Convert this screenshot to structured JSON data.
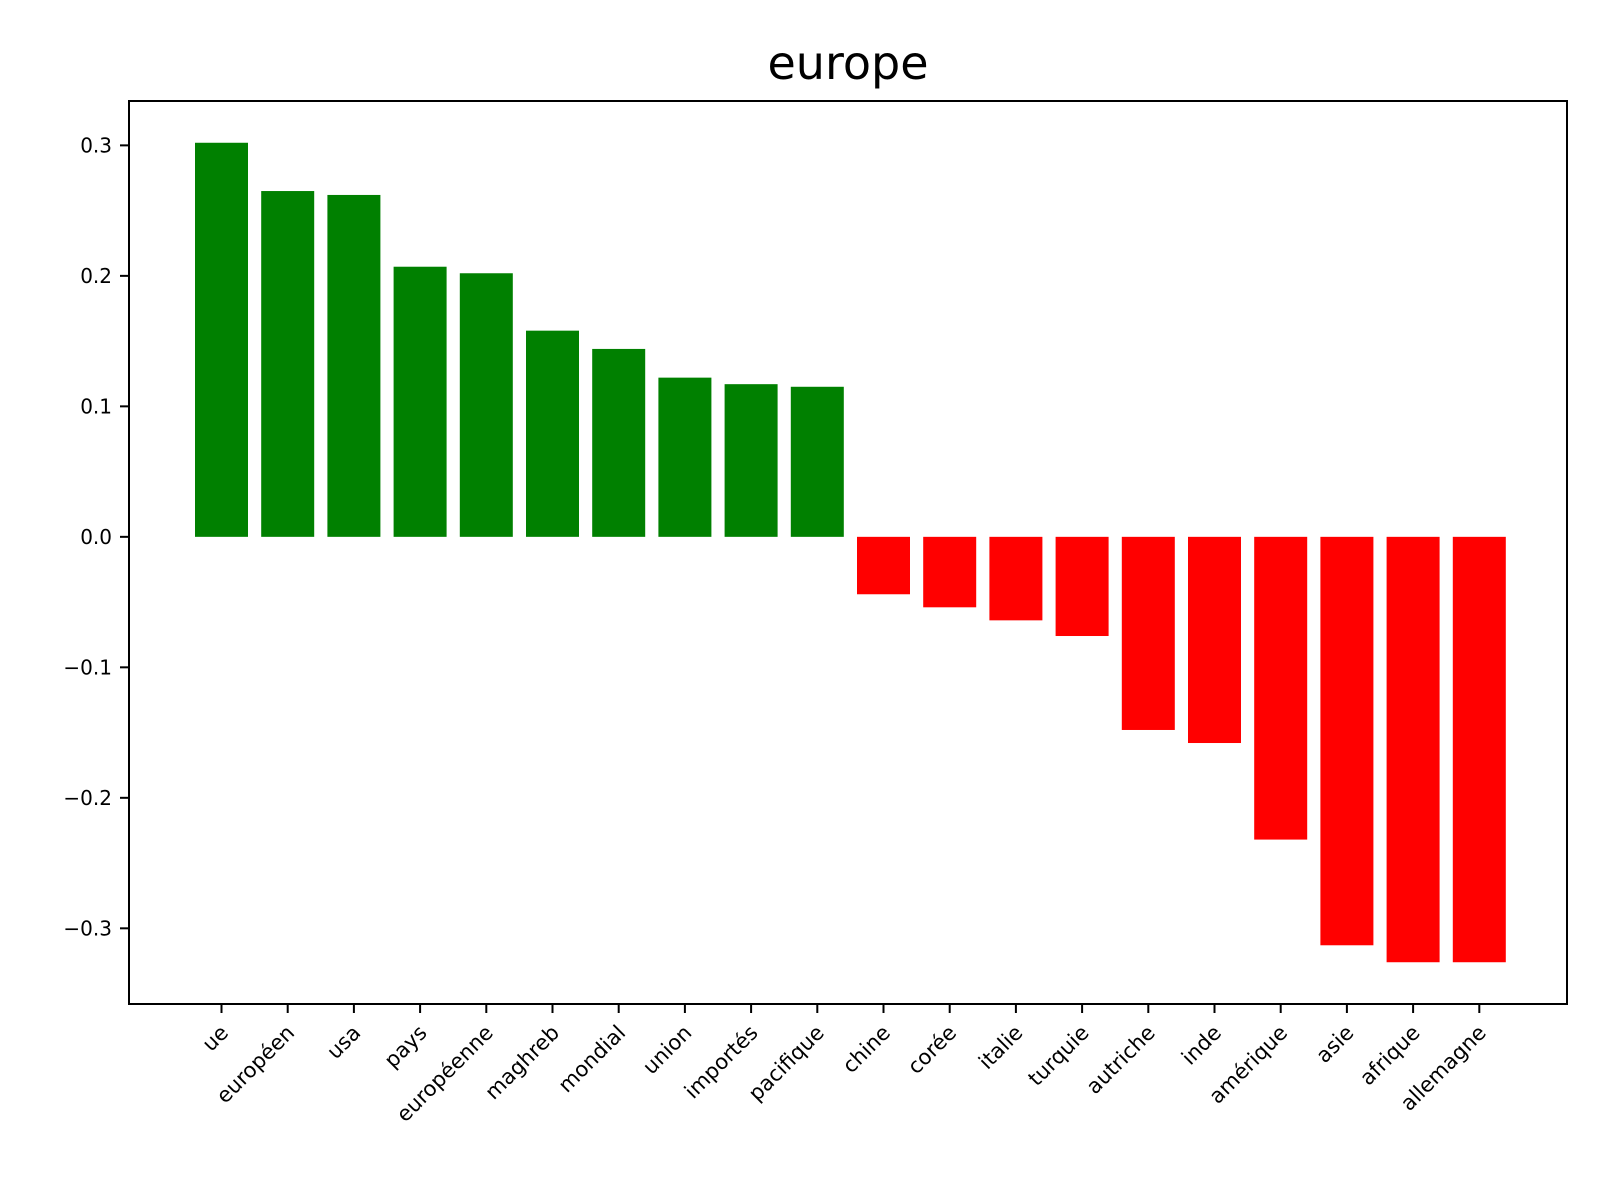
{
  "chart_data": {
    "type": "bar",
    "title": "europe",
    "xlabel": "",
    "ylabel": "",
    "ylim": [
      -0.358,
      0.334
    ],
    "yticks": [
      0.3,
      0.2,
      0.1,
      0.0,
      -0.1,
      -0.2,
      -0.3
    ],
    "ytick_labels": [
      "0.3",
      "0.2",
      "0.1",
      "0.0",
      "−0.1",
      "−0.2",
      "−0.3"
    ],
    "grid": false,
    "colors": {
      "positive": "#008000",
      "negative": "#ff0000"
    },
    "categories": [
      "ue",
      "européen",
      "usa",
      "pays",
      "européenne",
      "maghreb",
      "mondial",
      "union",
      "importés",
      "pacifique",
      "chine",
      "corée",
      "italie",
      "turquie",
      "autriche",
      "inde",
      "amérique",
      "asie",
      "afrique",
      "allemagne"
    ],
    "values": [
      0.302,
      0.265,
      0.262,
      0.207,
      0.202,
      0.158,
      0.144,
      0.122,
      0.117,
      0.115,
      -0.044,
      -0.054,
      -0.064,
      -0.076,
      -0.148,
      -0.158,
      -0.232,
      -0.313,
      -0.326,
      -0.326
    ]
  }
}
